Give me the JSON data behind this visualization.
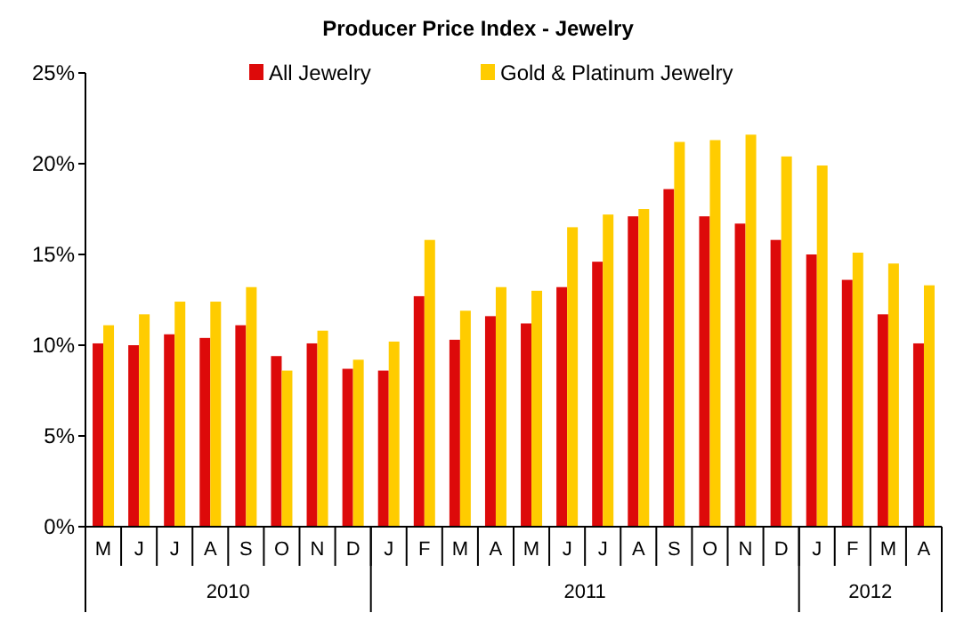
{
  "chart_data": {
    "type": "bar",
    "title": "Producer Price Index - Jewelry",
    "categories": [
      "M",
      "J",
      "J",
      "A",
      "S",
      "O",
      "N",
      "D",
      "J",
      "F",
      "M",
      "A",
      "M",
      "J",
      "J",
      "A",
      "S",
      "O",
      "N",
      "D",
      "J",
      "F",
      "M",
      "A"
    ],
    "series": [
      {
        "name": "All Jewelry",
        "color": "#dd0a0a",
        "values": [
          10.1,
          10.0,
          10.6,
          10.4,
          11.1,
          9.4,
          10.1,
          8.7,
          8.6,
          12.7,
          10.3,
          11.6,
          11.2,
          13.2,
          14.6,
          17.1,
          18.6,
          17.1,
          16.7,
          15.8,
          15.0,
          13.6,
          11.7,
          10.1
        ]
      },
      {
        "name": "Gold & Platinum Jewelry",
        "color": "#ffcc00",
        "values": [
          11.1,
          11.7,
          12.4,
          12.4,
          13.2,
          8.6,
          10.8,
          9.2,
          10.2,
          15.8,
          11.9,
          13.2,
          13.0,
          16.5,
          17.2,
          17.5,
          21.2,
          21.3,
          21.6,
          20.4,
          19.9,
          15.1,
          14.5,
          13.3
        ]
      }
    ],
    "ylim": [
      0,
      25
    ],
    "yticks": [
      {
        "value": 0,
        "label": "0%"
      },
      {
        "value": 5,
        "label": "5%"
      },
      {
        "value": 10,
        "label": "10%"
      },
      {
        "value": 15,
        "label": "15%"
      },
      {
        "value": 20,
        "label": "20%"
      },
      {
        "value": 25,
        "label": "25%"
      }
    ],
    "annotations": [
      "2010",
      "2011",
      "2012"
    ],
    "legend": "top"
  }
}
